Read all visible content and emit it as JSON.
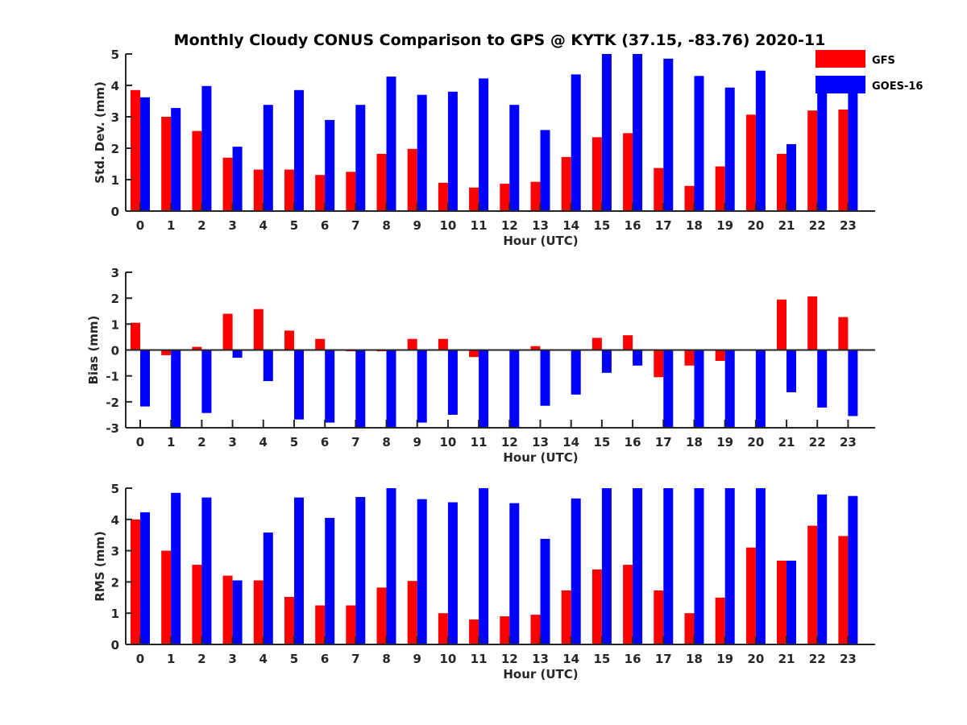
{
  "chart_data": {
    "title": "Monthly Cloudy CONUS Comparison to GPS @ KYTK (37.15, -83.76) 2020-11",
    "colors": {
      "GFS": "#ff0000",
      "GOES-16": "#0000ff"
    },
    "legend": {
      "entries": [
        "GFS",
        "GOES-16"
      ],
      "placement": "top-right"
    },
    "panels": [
      {
        "type": "bar",
        "ylabel": "Std. Dev. (mm)",
        "xlabel": "Hour (UTC)",
        "ylim": [
          0,
          5
        ],
        "yticks": [
          "0",
          "1",
          "2",
          "3",
          "4",
          "5"
        ],
        "categories": [
          "0",
          "1",
          "2",
          "3",
          "4",
          "5",
          "6",
          "7",
          "8",
          "9",
          "10",
          "11",
          "12",
          "13",
          "14",
          "15",
          "16",
          "17",
          "18",
          "19",
          "20",
          "21",
          "22",
          "23"
        ],
        "series": [
          {
            "name": "GFS",
            "values": [
              3.85,
              3.0,
              2.55,
              1.7,
              1.32,
              1.32,
              1.15,
              1.25,
              1.82,
              1.98,
              0.9,
              0.75,
              0.87,
              0.93,
              1.72,
              2.35,
              2.48,
              1.37,
              0.8,
              1.42,
              3.07,
              1.82,
              3.2,
              3.23
            ]
          },
          {
            "name": "GOES-16",
            "values": [
              3.62,
              3.28,
              3.98,
              2.05,
              3.38,
              3.85,
              2.9,
              3.38,
              4.28,
              3.7,
              3.8,
              4.22,
              3.38,
              2.58,
              4.35,
              5.0,
              5.0,
              4.85,
              4.3,
              3.93,
              4.47,
              2.13,
              4.25,
              4.25
            ]
          }
        ]
      },
      {
        "type": "bar",
        "ylabel": "Bias (mm)",
        "xlabel": "Hour (UTC)",
        "ylim": [
          -3,
          3
        ],
        "yticks": [
          "-3",
          "-2",
          "-1",
          "0",
          "1",
          "2",
          "3"
        ],
        "categories": [
          "0",
          "1",
          "2",
          "3",
          "4",
          "5",
          "6",
          "7",
          "8",
          "9",
          "10",
          "11",
          "12",
          "13",
          "14",
          "15",
          "16",
          "17",
          "18",
          "19",
          "20",
          "21",
          "22",
          "23"
        ],
        "series": [
          {
            "name": "GFS",
            "values": [
              1.05,
              -0.2,
              0.12,
              1.4,
              1.58,
              0.75,
              0.43,
              -0.05,
              -0.05,
              0.43,
              0.43,
              -0.27,
              -0.02,
              0.15,
              0.02,
              0.47,
              0.57,
              -1.05,
              -0.6,
              -0.42,
              0.0,
              1.95,
              2.07,
              1.27
            ]
          },
          {
            "name": "GOES-16",
            "values": [
              -2.18,
              -3.0,
              -2.43,
              -0.3,
              -1.2,
              -2.68,
              -2.8,
              -3.0,
              -3.0,
              -2.8,
              -2.5,
              -3.0,
              -3.0,
              -2.15,
              -1.72,
              -0.88,
              -0.6,
              -3.0,
              -3.0,
              -3.0,
              -3.0,
              -1.63,
              -2.22,
              -2.55
            ]
          }
        ]
      },
      {
        "type": "bar",
        "ylabel": "RMS (mm)",
        "xlabel": "Hour (UTC)",
        "ylim": [
          0,
          5
        ],
        "yticks": [
          "0",
          "1",
          "2",
          "3",
          "4",
          "5"
        ],
        "categories": [
          "0",
          "1",
          "2",
          "3",
          "4",
          "5",
          "6",
          "7",
          "8",
          "9",
          "10",
          "11",
          "12",
          "13",
          "14",
          "15",
          "16",
          "17",
          "18",
          "19",
          "20",
          "21",
          "22",
          "23"
        ],
        "series": [
          {
            "name": "GFS",
            "values": [
              4.0,
              3.0,
              2.55,
              2.2,
              2.05,
              1.52,
              1.25,
              1.25,
              1.82,
              2.03,
              1.0,
              0.8,
              0.9,
              0.95,
              1.73,
              2.4,
              2.55,
              1.73,
              1.0,
              1.5,
              3.1,
              2.68,
              3.8,
              3.47
            ]
          },
          {
            "name": "GOES-16",
            "values": [
              4.23,
              4.85,
              4.7,
              2.05,
              3.58,
              4.7,
              4.05,
              4.72,
              5.0,
              4.65,
              4.55,
              5.0,
              4.52,
              3.38,
              4.67,
              5.0,
              5.0,
              5.0,
              5.0,
              5.0,
              5.0,
              2.68,
              4.8,
              4.75
            ]
          }
        ]
      }
    ]
  }
}
